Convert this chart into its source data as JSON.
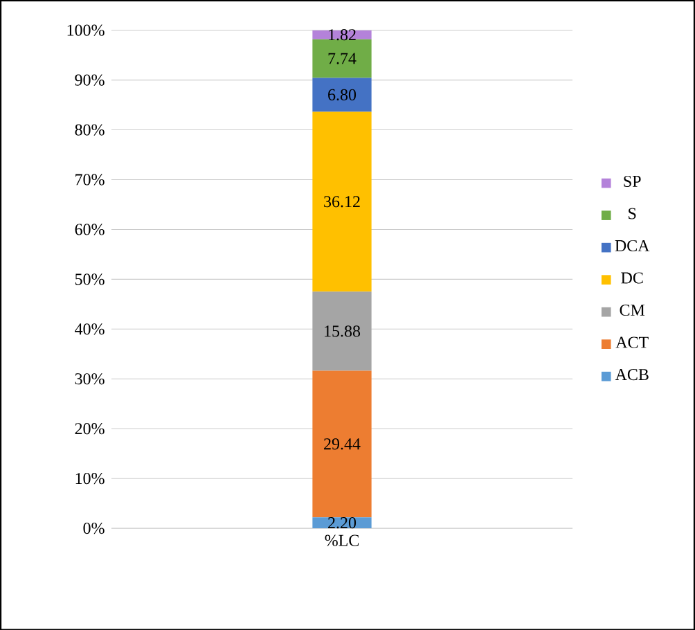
{
  "chart_data": {
    "type": "bar",
    "stacked": true,
    "categories": [
      "%LC"
    ],
    "series": [
      {
        "name": "ACB",
        "color": "#5b9bd5",
        "values": [
          2.2
        ],
        "value_labels": [
          "2.20"
        ]
      },
      {
        "name": "ACT",
        "color": "#ed7d31",
        "values": [
          29.44
        ],
        "value_labels": [
          "29.44"
        ]
      },
      {
        "name": "CM",
        "color": "#a5a5a5",
        "values": [
          15.88
        ],
        "value_labels": [
          "15.88"
        ]
      },
      {
        "name": "DC",
        "color": "#ffc000",
        "values": [
          36.12
        ],
        "value_labels": [
          "36.12"
        ]
      },
      {
        "name": "DCA",
        "color": "#4472c4",
        "values": [
          6.8
        ],
        "value_labels": [
          "6.80"
        ]
      },
      {
        "name": "S",
        "color": "#70ad47",
        "values": [
          7.74
        ],
        "value_labels": [
          "7.74"
        ]
      },
      {
        "name": "SP",
        "color": "#b482da",
        "values": [
          1.82
        ],
        "value_labels": [
          "1.82"
        ]
      }
    ],
    "ylim": [
      0,
      100
    ],
    "yticks": [
      {
        "value": 0,
        "label": "0%"
      },
      {
        "value": 10,
        "label": "10%"
      },
      {
        "value": 20,
        "label": "20%"
      },
      {
        "value": 30,
        "label": "30%"
      },
      {
        "value": 40,
        "label": "40%"
      },
      {
        "value": 50,
        "label": "50%"
      },
      {
        "value": 60,
        "label": "60%"
      },
      {
        "value": 70,
        "label": "70%"
      },
      {
        "value": 80,
        "label": "80%"
      },
      {
        "value": 90,
        "label": "90%"
      },
      {
        "value": 100,
        "label": "100%"
      }
    ],
    "grid": "y",
    "legend": "right"
  }
}
